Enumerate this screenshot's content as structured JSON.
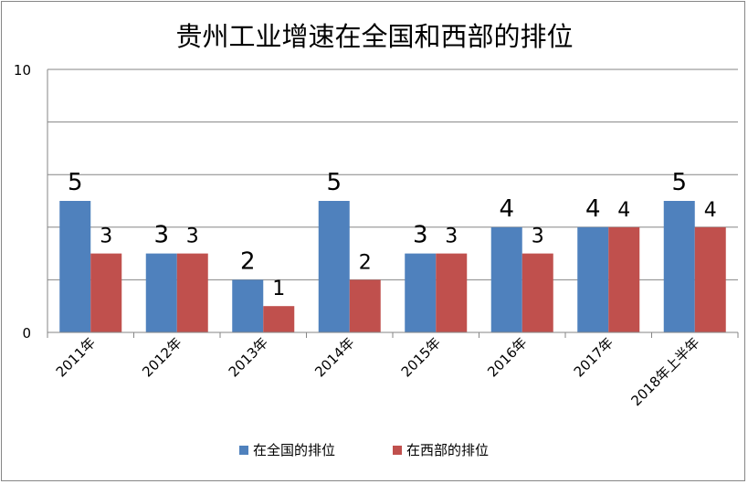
{
  "chart_data": {
    "type": "bar",
    "title": "贵州工业增速在全国和西部的排位",
    "categories": [
      "2011年",
      "2012年",
      "2013年",
      "2014年",
      "2015年",
      "2016年",
      "2017年",
      "2018年上半年"
    ],
    "series": [
      {
        "name": "在全国的排位",
        "values": [
          5,
          3,
          2,
          5,
          3,
          4,
          4,
          5
        ],
        "color": "#4F81BD"
      },
      {
        "name": "在西部的排位",
        "values": [
          3,
          3,
          1,
          2,
          3,
          3,
          4,
          4
        ],
        "color": "#C0504D"
      }
    ],
    "ylim": [
      0,
      10
    ],
    "yticks": [
      "0",
      "10"
    ],
    "grid": true,
    "legend": "bottom",
    "data_labels": true
  }
}
